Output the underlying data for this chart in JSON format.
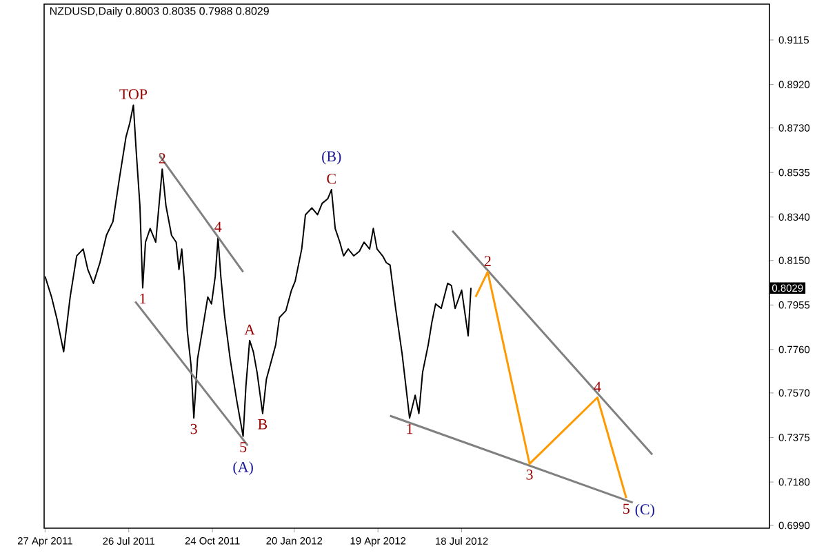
{
  "chart_data": {
    "type": "line",
    "title": "NZDUSD,Daily  0.8003 0.8035 0.7988 0.8029",
    "xlim": [
      "2011-04-26",
      "2013-06-14"
    ],
    "xticks": [
      {
        "value": "2011-04-27",
        "label": "27 Apr 2011"
      },
      {
        "value": "2011-07-26",
        "label": "26 Jul 2011"
      },
      {
        "value": "2011-10-24",
        "label": "24 Oct 2011"
      },
      {
        "value": "2012-01-20",
        "label": "20 Jan 2012"
      },
      {
        "value": "2012-04-19",
        "label": "19 Apr 2012"
      },
      {
        "value": "2012-07-18",
        "label": "18 Jul 2012"
      }
    ],
    "ylim": [
      0.6978,
      0.9272
    ],
    "yticks": [
      {
        "value": 0.699,
        "label": "0.6990"
      },
      {
        "value": 0.718,
        "label": "0.7180"
      },
      {
        "value": 0.7375,
        "label": "0.7375"
      },
      {
        "value": 0.757,
        "label": "0.7570"
      },
      {
        "value": 0.776,
        "label": "0.7760"
      },
      {
        "value": 0.7955,
        "label": "0.7955"
      },
      {
        "value": 0.815,
        "label": "0.8150"
      },
      {
        "value": 0.834,
        "label": "0.8340"
      },
      {
        "value": 0.8535,
        "label": "0.8535"
      },
      {
        "value": 0.873,
        "label": "0.8730"
      },
      {
        "value": 0.892,
        "label": "0.8920"
      },
      {
        "value": 0.9115,
        "label": "0.9115"
      }
    ],
    "series": [
      {
        "color": "#000000",
        "x": [
          "2011-04-27",
          "2011-05-04",
          "2011-05-10",
          "2011-05-17",
          "2011-05-24",
          "2011-05-31",
          "2011-06-07",
          "2011-06-12",
          "2011-06-18",
          "2011-06-25",
          "2011-07-02",
          "2011-07-09",
          "2011-07-16",
          "2011-07-23",
          "2011-07-27",
          "2011-07-31",
          "2011-08-03",
          "2011-08-07",
          "2011-08-10",
          "2011-08-13",
          "2011-08-18",
          "2011-08-24",
          "2011-08-31",
          "2011-09-04",
          "2011-09-10",
          "2011-09-15",
          "2011-09-18",
          "2011-09-21",
          "2011-09-24",
          "2011-09-27",
          "2011-10-01",
          "2011-10-04",
          "2011-10-08",
          "2011-10-13",
          "2011-10-19",
          "2011-10-23",
          "2011-10-27",
          "2011-10-30",
          "2011-11-02",
          "2011-11-06",
          "2011-11-12",
          "2011-11-19",
          "2011-11-26",
          "2011-11-29",
          "2011-12-03",
          "2011-12-07",
          "2011-12-11",
          "2011-12-17",
          "2011-12-21",
          "2011-12-27",
          "2011-12-31",
          "2012-01-04",
          "2012-01-11",
          "2012-01-17",
          "2012-01-21",
          "2012-01-28",
          "2012-02-01",
          "2012-02-08",
          "2012-02-14",
          "2012-02-19",
          "2012-02-25",
          "2012-02-29",
          "2012-03-04",
          "2012-03-09",
          "2012-03-13",
          "2012-03-18",
          "2012-03-24",
          "2012-03-30",
          "2012-04-04",
          "2012-04-10",
          "2012-04-14",
          "2012-04-18",
          "2012-04-24",
          "2012-04-28",
          "2012-05-02",
          "2012-05-08",
          "2012-05-15",
          "2012-05-19",
          "2012-05-23",
          "2012-05-29",
          "2012-06-02",
          "2012-06-06",
          "2012-06-12",
          "2012-06-16",
          "2012-06-20",
          "2012-06-26",
          "2012-07-03",
          "2012-07-07",
          "2012-07-11",
          "2012-07-18",
          "2012-07-25",
          "2012-07-28"
        ],
        "values": [
          0.808,
          0.799,
          0.789,
          0.775,
          0.799,
          0.817,
          0.82,
          0.811,
          0.805,
          0.814,
          0.826,
          0.832,
          0.851,
          0.869,
          0.875,
          0.883,
          0.863,
          0.839,
          0.803,
          0.823,
          0.829,
          0.823,
          0.855,
          0.839,
          0.826,
          0.823,
          0.811,
          0.82,
          0.805,
          0.784,
          0.769,
          0.746,
          0.772,
          0.784,
          0.799,
          0.796,
          0.808,
          0.825,
          0.808,
          0.791,
          0.772,
          0.754,
          0.738,
          0.76,
          0.78,
          0.775,
          0.766,
          0.748,
          0.763,
          0.772,
          0.778,
          0.79,
          0.793,
          0.802,
          0.806,
          0.82,
          0.835,
          0.838,
          0.835,
          0.84,
          0.842,
          0.846,
          0.829,
          0.823,
          0.817,
          0.82,
          0.817,
          0.819,
          0.823,
          0.82,
          0.829,
          0.82,
          0.817,
          0.814,
          0.813,
          0.794,
          0.774,
          0.76,
          0.746,
          0.756,
          0.748,
          0.766,
          0.778,
          0.788,
          0.796,
          0.794,
          0.805,
          0.804,
          0.794,
          0.802,
          0.782,
          0.803
        ]
      },
      {
        "color": "#808080",
        "x": [
          "2011-08-28",
          "2011-11-26"
        ],
        "values": [
          0.861,
          0.81
        ]
      },
      {
        "color": "#808080",
        "x": [
          "2011-08-02",
          "2011-12-01"
        ],
        "values": [
          0.797,
          0.734
        ]
      },
      {
        "color": "#808080",
        "x": [
          "2012-05-02",
          "2013-01-18"
        ],
        "values": [
          0.747,
          0.709
        ]
      },
      {
        "color": "#808080",
        "x": [
          "2012-07-08",
          "2013-02-08"
        ],
        "values": [
          0.828,
          0.73
        ]
      },
      {
        "color": "#ff9900",
        "x": [
          "2012-08-02",
          "2012-08-15",
          "2012-09-29",
          "2012-12-11",
          "2013-01-11"
        ],
        "values": [
          0.799,
          0.81,
          0.726,
          0.755,
          0.711
        ]
      }
    ],
    "annotations": [
      {
        "text": "TOP",
        "x": "2011-07-31",
        "y": 0.883
      },
      {
        "text": "2",
        "x": "2011-08-31",
        "y": 0.855
      },
      {
        "text": "4",
        "x": "2011-10-30",
        "y": 0.825
      },
      {
        "text": "1",
        "x": "2011-08-10",
        "y": 0.803
      },
      {
        "text": "3",
        "x": "2011-10-04",
        "y": 0.746
      },
      {
        "text": "5",
        "x": "2011-11-26",
        "y": 0.738
      },
      {
        "text": "(A)",
        "x": "2011-11-26",
        "y": 0.738
      },
      {
        "text": "A",
        "x": "2011-12-03",
        "y": 0.78
      },
      {
        "text": "B",
        "x": "2011-12-17",
        "y": 0.748
      },
      {
        "text": "C",
        "x": "2012-02-29",
        "y": 0.846
      },
      {
        "text": "(B)",
        "x": "2012-02-29",
        "y": 0.846
      },
      {
        "text": "1",
        "x": "2012-05-23",
        "y": 0.746
      },
      {
        "text": "2",
        "x": "2012-08-15",
        "y": 0.81
      },
      {
        "text": "3",
        "x": "2012-09-29",
        "y": 0.726
      },
      {
        "text": "4",
        "x": "2012-12-11",
        "y": 0.755
      },
      {
        "text": "5",
        "x": "2013-01-11",
        "y": 0.711
      },
      {
        "text": "(C)",
        "x": "2013-01-11",
        "y": 0.711
      },
      {
        "text": "0.8029",
        "y": 0.8029
      }
    ]
  }
}
